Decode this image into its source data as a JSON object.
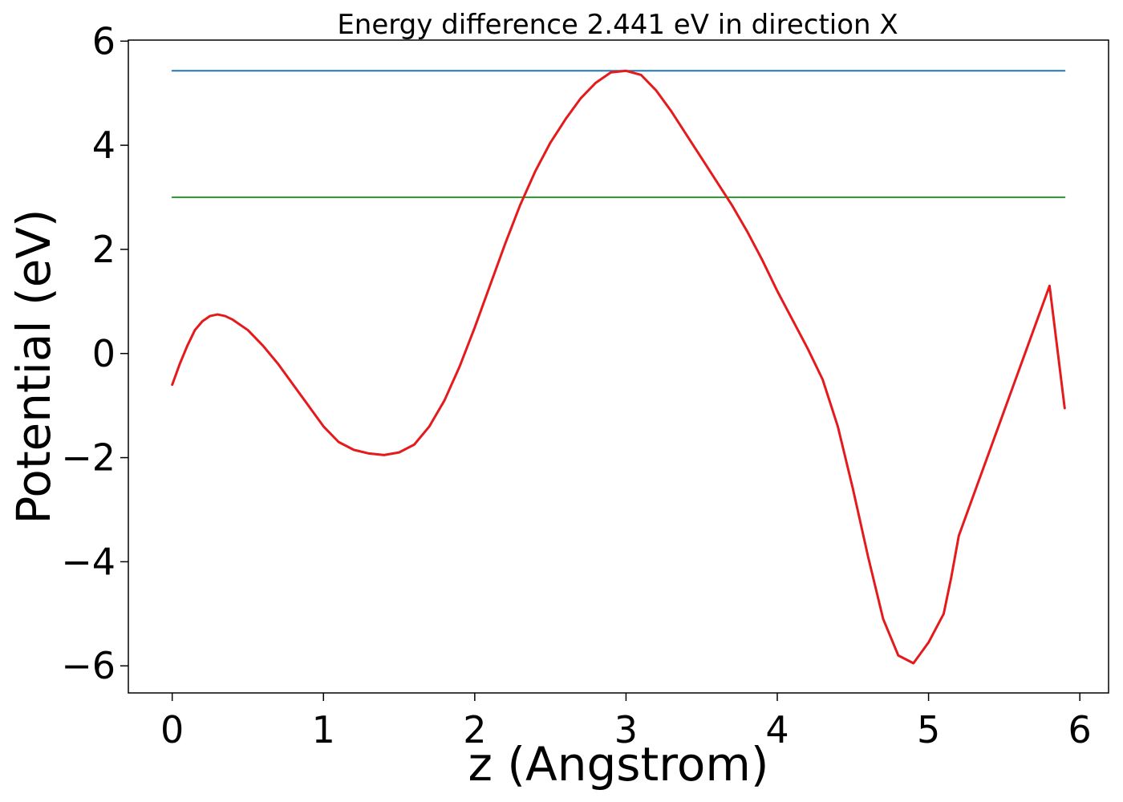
{
  "chart_data": {
    "type": "line",
    "title": "Energy difference 2.441 eV in direction X",
    "xlabel": "z (Angstrom)",
    "ylabel": "Potential (eV)",
    "xlim": [
      -0.29,
      6.19
    ],
    "ylim": [
      -6.52,
      6.02
    ],
    "xticks": [
      0,
      1,
      2,
      3,
      4,
      5,
      6
    ],
    "xtick_labels": [
      "0",
      "1",
      "2",
      "3",
      "4",
      "5",
      "6"
    ],
    "yticks": [
      -6,
      -4,
      -2,
      0,
      2,
      4,
      6
    ],
    "ytick_labels": [
      "−6",
      "−4",
      "−2",
      "0",
      "2",
      "4",
      "6"
    ],
    "grid": false,
    "series": [
      {
        "color": "#1f77b4",
        "x": [
          0,
          5.9
        ],
        "y": [
          5.43,
          5.43
        ]
      },
      {
        "color": "#2ca02c",
        "x": [
          0,
          5.9
        ],
        "y": [
          3.0,
          3.0
        ]
      },
      {
        "color": "#e41a1c",
        "x": [
          0,
          0.05,
          0.1,
          0.15,
          0.2,
          0.25,
          0.3,
          0.35,
          0.4,
          0.5,
          0.6,
          0.7,
          0.8,
          0.9,
          1.0,
          1.1,
          1.2,
          1.3,
          1.4,
          1.5,
          1.6,
          1.7,
          1.8,
          1.9,
          2.0,
          2.1,
          2.2,
          2.3,
          2.4,
          2.5,
          2.6,
          2.7,
          2.8,
          2.9,
          3.0,
          3.1,
          3.2,
          3.3,
          3.4,
          3.5,
          3.6,
          3.7,
          3.8,
          3.9,
          4.0,
          4.1,
          4.2,
          4.3,
          4.4,
          4.5,
          4.6,
          4.7,
          4.8,
          4.9,
          5.0,
          5.1,
          5.15,
          5.2,
          5.3,
          5.4,
          5.5,
          5.6,
          5.7,
          5.8,
          5.9
        ],
        "y": [
          -0.6,
          -0.2,
          0.15,
          0.45,
          0.62,
          0.72,
          0.75,
          0.72,
          0.65,
          0.45,
          0.15,
          -0.2,
          -0.6,
          -1.0,
          -1.4,
          -1.7,
          -1.85,
          -1.92,
          -1.95,
          -1.9,
          -1.75,
          -1.4,
          -0.9,
          -0.25,
          0.5,
          1.3,
          2.1,
          2.85,
          3.5,
          4.05,
          4.5,
          4.9,
          5.2,
          5.4,
          5.43,
          5.35,
          5.05,
          4.65,
          4.2,
          3.75,
          3.3,
          2.85,
          2.35,
          1.8,
          1.2,
          0.65,
          0.1,
          -0.5,
          -1.4,
          -2.6,
          -3.9,
          -5.1,
          -5.8,
          -5.95,
          -5.55,
          -5.0,
          -4.3,
          -3.5,
          -2.7,
          -1.9,
          -1.1,
          -0.3,
          0.5,
          1.3,
          -1.05
        ]
      }
    ]
  }
}
